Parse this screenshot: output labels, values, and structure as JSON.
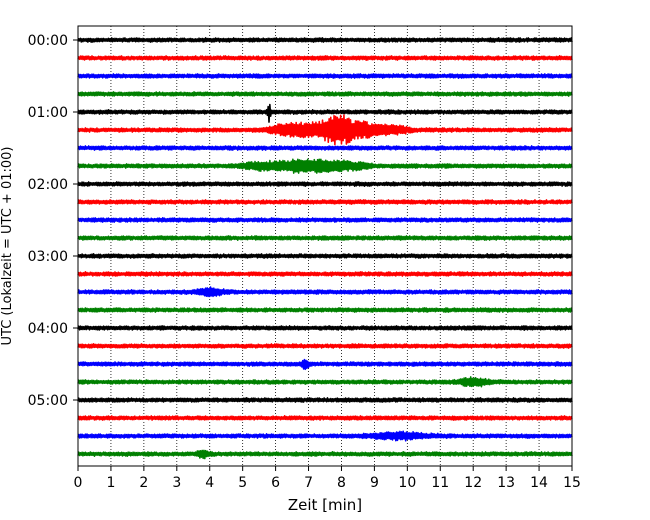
{
  "chart_data": {
    "type": "line",
    "title": "",
    "xlabel": "Zeit  [min]",
    "ylabel": "UTC (Lokalzeit = UTC + 01:00)",
    "xlim": [
      0,
      15
    ],
    "x_ticks": [
      0,
      1,
      2,
      3,
      4,
      5,
      6,
      7,
      8,
      9,
      10,
      11,
      12,
      13,
      14,
      15
    ],
    "y_tick_labels": [
      "00:00",
      "01:00",
      "02:00",
      "03:00",
      "04:00",
      "05:00"
    ],
    "grid": "vertical dotted lines at each minute",
    "legend": "none",
    "trace_interval_min": 15,
    "trace_colors": [
      "#000000",
      "#ff0000",
      "#0000ff",
      "#008000"
    ],
    "traces": [
      {
        "start": "00:00",
        "color": "#000000",
        "events": []
      },
      {
        "start": "00:15",
        "color": "#ff0000",
        "events": []
      },
      {
        "start": "00:30",
        "color": "#0000ff",
        "events": []
      },
      {
        "start": "00:45",
        "color": "#008000",
        "events": []
      },
      {
        "start": "01:00",
        "color": "#000000",
        "events": [
          {
            "t": 5.8,
            "amp": 8,
            "width": 0.05
          }
        ]
      },
      {
        "start": "01:15",
        "color": "#ff0000",
        "events": [
          {
            "t": 6.3,
            "amp": 4,
            "width": 0.5
          },
          {
            "t": 7.0,
            "amp": 5,
            "width": 0.6
          },
          {
            "t": 7.9,
            "amp": 13,
            "width": 0.5
          },
          {
            "t": 8.8,
            "amp": 6,
            "width": 0.6
          },
          {
            "t": 9.7,
            "amp": 3,
            "width": 0.4
          }
        ]
      },
      {
        "start": "01:30",
        "color": "#0000ff",
        "events": []
      },
      {
        "start": "01:45",
        "color": "#008000",
        "events": [
          {
            "t": 5.5,
            "amp": 3,
            "width": 0.5
          },
          {
            "t": 6.9,
            "amp": 6,
            "width": 0.9
          },
          {
            "t": 8.2,
            "amp": 3,
            "width": 0.6
          }
        ]
      },
      {
        "start": "02:00",
        "color": "#000000",
        "events": []
      },
      {
        "start": "02:15",
        "color": "#ff0000",
        "events": []
      },
      {
        "start": "02:30",
        "color": "#0000ff",
        "events": []
      },
      {
        "start": "02:45",
        "color": "#008000",
        "events": []
      },
      {
        "start": "03:00",
        "color": "#000000",
        "events": []
      },
      {
        "start": "03:15",
        "color": "#ff0000",
        "events": []
      },
      {
        "start": "03:30",
        "color": "#0000ff",
        "events": [
          {
            "t": 4.0,
            "amp": 3,
            "width": 0.4
          }
        ]
      },
      {
        "start": "03:45",
        "color": "#008000",
        "events": []
      },
      {
        "start": "04:00",
        "color": "#000000",
        "events": []
      },
      {
        "start": "04:15",
        "color": "#ff0000",
        "events": []
      },
      {
        "start": "04:30",
        "color": "#0000ff",
        "events": [
          {
            "t": 6.9,
            "amp": 4,
            "width": 0.1
          }
        ]
      },
      {
        "start": "04:45",
        "color": "#008000",
        "events": [
          {
            "t": 12.0,
            "amp": 4,
            "width": 0.4
          }
        ]
      },
      {
        "start": "05:00",
        "color": "#000000",
        "events": []
      },
      {
        "start": "05:15",
        "color": "#ff0000",
        "events": []
      },
      {
        "start": "05:30",
        "color": "#0000ff",
        "events": [
          {
            "t": 9.8,
            "amp": 3,
            "width": 0.8
          }
        ]
      },
      {
        "start": "05:45",
        "color": "#008000",
        "events": [
          {
            "t": 3.8,
            "amp": 3,
            "width": 0.2
          }
        ]
      }
    ]
  }
}
